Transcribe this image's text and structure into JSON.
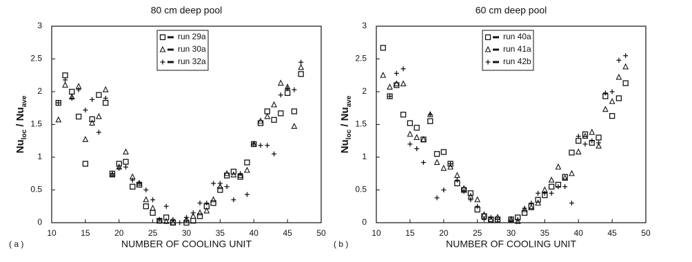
{
  "chart_data": [
    {
      "type": "scatter",
      "title": "80 cm deep pool",
      "panel_label": "( a )",
      "xlabel": "NUMBER OF COOLING UNIT",
      "ylabel": [
        "Nu",
        "loc",
        " / Nu",
        "ave"
      ],
      "xlim": [
        10,
        50
      ],
      "ylim": [
        0,
        3
      ],
      "xticks": [
        10,
        15,
        20,
        25,
        30,
        35,
        40,
        45,
        50
      ],
      "yticks": [
        0,
        0.5,
        1,
        1.5,
        2,
        2.5,
        3
      ],
      "legend": "upper center",
      "x": [
        11,
        12,
        13,
        14,
        15,
        16,
        17,
        18,
        19,
        20,
        21,
        22,
        23,
        24,
        25,
        26,
        27,
        28,
        29,
        30,
        31,
        32,
        33,
        34,
        35,
        36,
        37,
        38,
        39,
        40,
        41,
        42,
        43,
        44,
        45,
        46,
        47
      ],
      "series": [
        {
          "name": "run 29a",
          "marker": "square",
          "color": "#111",
          "values": [
            1.83,
            2.25,
            2.0,
            1.62,
            0.9,
            1.58,
            1.95,
            1.83,
            0.75,
            0.9,
            0.93,
            0.55,
            0.58,
            0.25,
            0.15,
            0.03,
            0.08,
            0.0,
            null,
            0.0,
            0.03,
            0.1,
            0.25,
            0.3,
            0.5,
            0.72,
            0.78,
            0.7,
            0.92,
            1.2,
            1.52,
            1.7,
            1.57,
            1.67,
            1.98,
            1.7,
            2.27
          ]
        },
        {
          "name": "run 30a",
          "marker": "triangle",
          "color": "#111",
          "values": [
            1.57,
            2.1,
            1.92,
            2.08,
            1.27,
            1.52,
            1.62,
            2.03,
            0.73,
            0.85,
            1.08,
            0.7,
            0.6,
            0.35,
            0.22,
            0.03,
            0.02,
            0.0,
            null,
            0.05,
            0.1,
            0.15,
            0.18,
            0.35,
            0.55,
            0.75,
            0.73,
            0.72,
            0.8,
            1.2,
            1.55,
            1.62,
            1.8,
            2.13,
            2.07,
            1.47,
            2.37
          ]
        },
        {
          "name": "run 32a",
          "marker": "plus",
          "color": "#111",
          "values": [
            1.83,
            2.18,
            1.9,
            2.03,
            1.72,
            1.88,
            1.38,
            1.9,
            0.75,
            0.83,
            0.85,
            0.65,
            0.6,
            0.5,
            0.35,
            0.05,
            0.25,
            0.05,
            0.0,
            0.08,
            0.15,
            0.3,
            0.3,
            0.6,
            0.6,
            0.55,
            0.35,
            0.75,
            0.43,
            1.2,
            1.18,
            1.18,
            1.05,
            1.95,
            2.05,
            2.03,
            2.45
          ]
        }
      ]
    },
    {
      "type": "scatter",
      "title": "60 cm deep pool",
      "panel_label": "( b )",
      "xlabel": "NUMBER OF COOLING UNIT",
      "ylabel": [
        "Nu",
        "loc",
        " / Nu",
        "ave"
      ],
      "xlim": [
        10,
        50
      ],
      "ylim": [
        0,
        3
      ],
      "xticks": [
        10,
        15,
        20,
        25,
        30,
        35,
        40,
        45,
        50
      ],
      "yticks": [
        0,
        0.5,
        1,
        1.5,
        2,
        2.5,
        3
      ],
      "legend": "upper center",
      "x": [
        11,
        12,
        13,
        14,
        15,
        16,
        17,
        18,
        19,
        20,
        21,
        22,
        23,
        24,
        25,
        26,
        27,
        28,
        29,
        30,
        31,
        32,
        33,
        34,
        35,
        36,
        37,
        38,
        39,
        40,
        41,
        42,
        43,
        44,
        45,
        46,
        47
      ],
      "series": [
        {
          "name": "run 40a",
          "marker": "square",
          "color": "#111",
          "values": [
            2.67,
            1.93,
            2.1,
            1.65,
            1.52,
            1.45,
            1.27,
            1.55,
            1.05,
            1.08,
            0.9,
            0.6,
            0.5,
            0.45,
            0.2,
            0.1,
            0.05,
            0.05,
            null,
            0.05,
            0.08,
            0.15,
            0.25,
            0.35,
            0.42,
            0.55,
            0.58,
            0.7,
            1.07,
            1.25,
            1.35,
            1.22,
            1.3,
            1.93,
            1.63,
            1.9,
            2.13
          ]
        },
        {
          "name": "run 41a",
          "marker": "triangle",
          "color": "#111",
          "values": [
            2.25,
            2.07,
            2.12,
            2.12,
            1.35,
            1.3,
            1.27,
            1.65,
            0.92,
            0.83,
            0.85,
            0.72,
            0.52,
            0.4,
            0.35,
            0.12,
            0.05,
            0.08,
            null,
            0.05,
            0.02,
            0.2,
            0.23,
            0.3,
            0.5,
            0.65,
            0.85,
            0.68,
            0.75,
            1.08,
            1.32,
            1.38,
            1.17,
            1.73,
            1.85,
            2.22,
            2.38
          ]
        },
        {
          "name": "run 42b",
          "marker": "plus",
          "color": "#111",
          "values": [
            null,
            1.93,
            2.28,
            2.35,
            1.2,
            1.13,
            0.92,
            1.65,
            0.38,
            0.5,
            0.9,
            0.65,
            0.48,
            0.35,
            0.25,
            0.05,
            0.08,
            0.05,
            null,
            0.03,
            0.05,
            0.22,
            0.3,
            0.45,
            0.45,
            0.45,
            0.55,
            0.55,
            0.3,
            1.32,
            1.2,
            1.25,
            1.22,
            1.98,
            2.0,
            2.48,
            2.55
          ]
        }
      ]
    }
  ]
}
